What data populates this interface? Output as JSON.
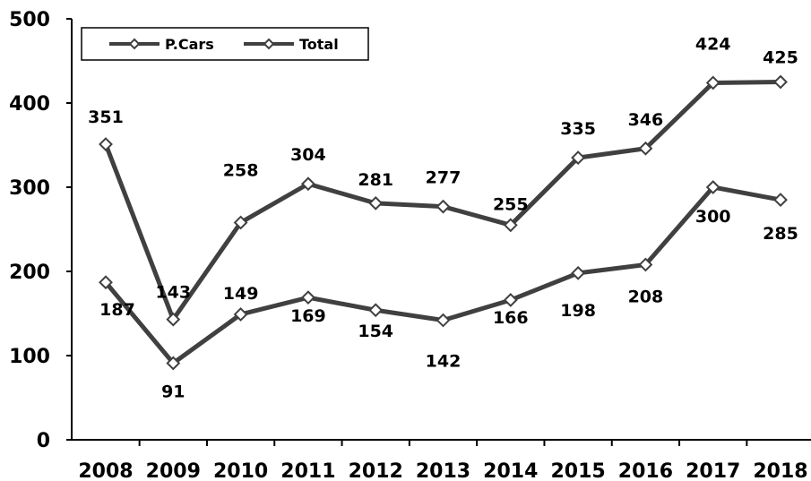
{
  "chart_data": {
    "type": "line",
    "categories": [
      "2008",
      "2009",
      "2010",
      "2011",
      "2012",
      "2013",
      "2014",
      "2015",
      "2016",
      "2017",
      "2018"
    ],
    "series": [
      {
        "name": "P.Cars",
        "values": [
          187,
          91,
          149,
          169,
          154,
          142,
          166,
          198,
          208,
          300,
          285
        ]
      },
      {
        "name": "Total",
        "values": [
          351,
          143,
          258,
          304,
          281,
          277,
          255,
          335,
          346,
          424,
          425
        ]
      }
    ],
    "ylim": [
      0,
      500
    ],
    "y_ticks": [
      "0",
      "100",
      "200",
      "300",
      "400",
      "500"
    ],
    "grid": false,
    "legend_position": "top-left",
    "line_color": "#404040",
    "marker": "diamond-open"
  }
}
